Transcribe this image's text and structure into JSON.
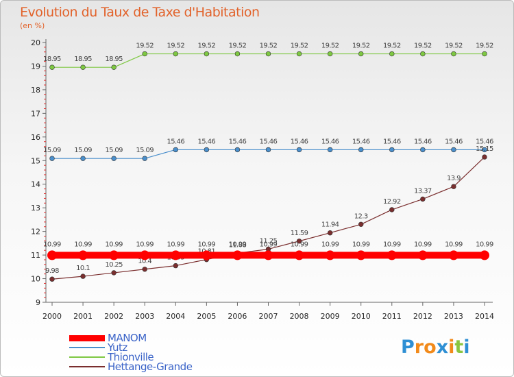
{
  "header": {
    "title": "Evolution du Taux de Taxe d'Habitation",
    "subtitle": "(en %)"
  },
  "logo": {
    "text": "Proxiti"
  },
  "chart_data": {
    "type": "line",
    "title": "Evolution du Taux de Taxe d'Habitation",
    "ylabel": "(en %)",
    "xlabel": "",
    "x": [
      2000,
      2001,
      2002,
      2003,
      2004,
      2005,
      2006,
      2007,
      2008,
      2009,
      2010,
      2011,
      2012,
      2013,
      2014
    ],
    "x_tick_labels": [
      "2000",
      "2001",
      "2002",
      "2003",
      "2004",
      "2005",
      "2006",
      "2007",
      "2008",
      "2009",
      "2010",
      "2011",
      "2012",
      "2013",
      "2014"
    ],
    "ylim": [
      9,
      20
    ],
    "y_ticks": [
      9,
      10,
      11,
      12,
      13,
      14,
      15,
      16,
      17,
      18,
      19,
      20
    ],
    "y_tick_labels": [
      "9",
      "10",
      "11",
      "12",
      "13",
      "14",
      "15",
      "16",
      "17",
      "18",
      "19",
      "20"
    ],
    "grid": false,
    "legend_position": "bottom-left",
    "series": [
      {
        "name": "MANOM",
        "color": "#ff0000",
        "values": [
          10.99,
          10.99,
          10.99,
          10.99,
          10.99,
          10.99,
          10.99,
          10.99,
          10.99,
          10.99,
          10.99,
          10.99,
          10.99,
          10.99,
          10.99
        ],
        "labels": [
          "10.99",
          "10.99",
          "10.99",
          "10.99",
          "10.99",
          "10.99",
          "10.99",
          "10.99",
          "10.99",
          "10.99",
          "10.99",
          "10.99",
          "10.99",
          "10.99",
          "10.99"
        ]
      },
      {
        "name": "Yutz",
        "color": "#4a8fcc",
        "values": [
          15.09,
          15.09,
          15.09,
          15.09,
          15.46,
          15.46,
          15.46,
          15.46,
          15.46,
          15.46,
          15.46,
          15.46,
          15.46,
          15.46,
          15.46
        ],
        "labels": [
          "15.09",
          "15.09",
          "15.09",
          "15.09",
          "15.46",
          "15.46",
          "15.46",
          "15.46",
          "15.46",
          "15.46",
          "15.46",
          "15.46",
          "15.46",
          "15.46",
          "15.46"
        ]
      },
      {
        "name": "Thionville",
        "color": "#7ec842",
        "values": [
          18.95,
          18.95,
          18.95,
          19.52,
          19.52,
          19.52,
          19.52,
          19.52,
          19.52,
          19.52,
          19.52,
          19.52,
          19.52,
          19.52,
          19.52
        ],
        "labels": [
          "18.95",
          "18.95",
          "18.95",
          "19.52",
          "19.52",
          "19.52",
          "19.52",
          "19.52",
          "19.52",
          "19.52",
          "19.52",
          "19.52",
          "19.52",
          "19.52",
          "19.52"
        ]
      },
      {
        "name": "Hettange-Grande",
        "color": "#7a2e2e",
        "values": [
          9.98,
          10.1,
          10.25,
          10.4,
          10.55,
          10.81,
          11.08,
          11.25,
          11.59,
          11.94,
          12.3,
          12.92,
          13.37,
          13.9,
          15.15
        ],
        "labels": [
          "9.98",
          "10.1",
          "10.25",
          "10.4",
          "10.55",
          "10.81",
          "11.08",
          "11.25",
          "11.59",
          "11.94",
          "12.3",
          "12.92",
          "13.37",
          "13.9",
          "15.15"
        ]
      }
    ]
  }
}
